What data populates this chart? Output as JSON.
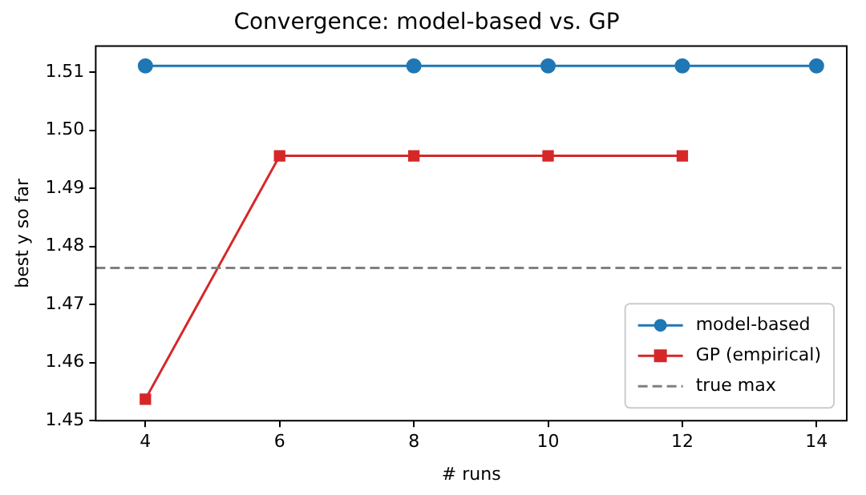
{
  "chart_data": {
    "type": "line",
    "title": "Convergence: model-based vs. GP",
    "xlabel": "# runs",
    "ylabel": "best y so far",
    "series": [
      {
        "name": "model-based",
        "color": "#1f77b4",
        "marker": "circle",
        "x": [
          4,
          8,
          10,
          12,
          14
        ],
        "values": [
          1.5111,
          1.5111,
          1.5111,
          1.5111,
          1.5111
        ]
      },
      {
        "name": "GP (empirical)",
        "color": "#d62728",
        "marker": "square",
        "x": [
          4,
          6,
          8,
          10,
          12
        ],
        "values": [
          1.4537,
          1.4956,
          1.4956,
          1.4956,
          1.4956
        ]
      }
    ],
    "ref_lines": [
      {
        "axis": "y",
        "value": 1.4763,
        "label": "true max",
        "color": "#808080",
        "line_style": "dashed"
      }
    ],
    "xlim": [
      3.26,
      14.45
    ],
    "xticks": [
      4,
      6,
      8,
      10,
      12,
      14
    ],
    "ylim": [
      1.45,
      1.5145
    ],
    "yticks": [
      {
        "value": 1.45,
        "label": "1.45"
      },
      {
        "value": 1.46,
        "label": "1.46"
      },
      {
        "value": 1.47,
        "label": "1.47"
      },
      {
        "value": 1.48,
        "label": "1.48"
      },
      {
        "value": 1.49,
        "label": "1.49"
      },
      {
        "value": 1.5,
        "label": "1.50"
      },
      {
        "value": 1.51,
        "label": "1.51"
      }
    ],
    "grid": false,
    "legend": "bottom right"
  }
}
